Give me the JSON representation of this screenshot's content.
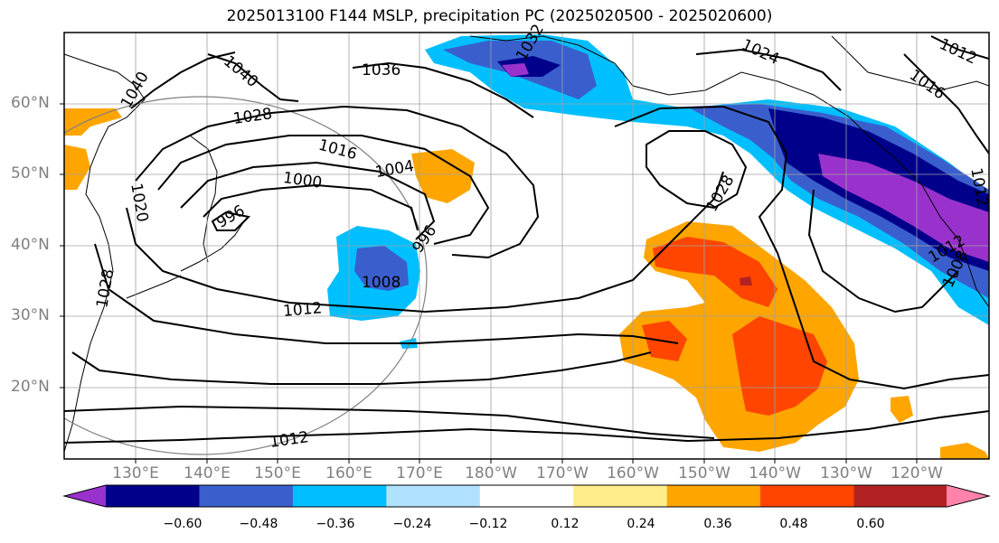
{
  "title": "2025013100 F144 MSLP, precipitation PC (2025020500 - 2025020600)",
  "lat_labels": [
    "60°N",
    "50°N",
    "40°N",
    "30°N",
    "20°N"
  ],
  "lon_labels": [
    "130°E",
    "140°E",
    "150°E",
    "160°E",
    "170°E",
    "180°W",
    "170°W",
    "160°W",
    "150°W",
    "140°W",
    "130°W",
    "120°W"
  ],
  "isobar_labels": [
    "1040",
    "1040",
    "1036",
    "1032",
    "1024",
    "1012",
    "1016",
    "1028",
    "1016",
    "1004",
    "1000",
    "1020",
    "996",
    "996",
    "1008",
    "1012",
    "1028",
    "1028",
    "1012",
    "1012",
    "1008",
    "1012"
  ],
  "colorbar": {
    "tick_labels": [
      "−0.60",
      "−0.48",
      "−0.36",
      "−0.24",
      "−0.12",
      "0.12",
      "0.24",
      "0.36",
      "0.48",
      "0.60"
    ],
    "colors": [
      "#9932cc",
      "#00008b",
      "#3a5fcd",
      "#00bfff",
      "#b0e2ff",
      "#ffffff",
      "#ffec8b",
      "#ffa500",
      "#ff4500",
      "#b22222",
      "#ff82ab"
    ]
  },
  "shading_colors": {
    "purple": "#9932cc",
    "navy": "#00008b",
    "royal": "#3a5fcd",
    "sky": "#00bfff",
    "orange": "#ffa500",
    "red": "#ff4500",
    "dark_red": "#b22222"
  }
}
